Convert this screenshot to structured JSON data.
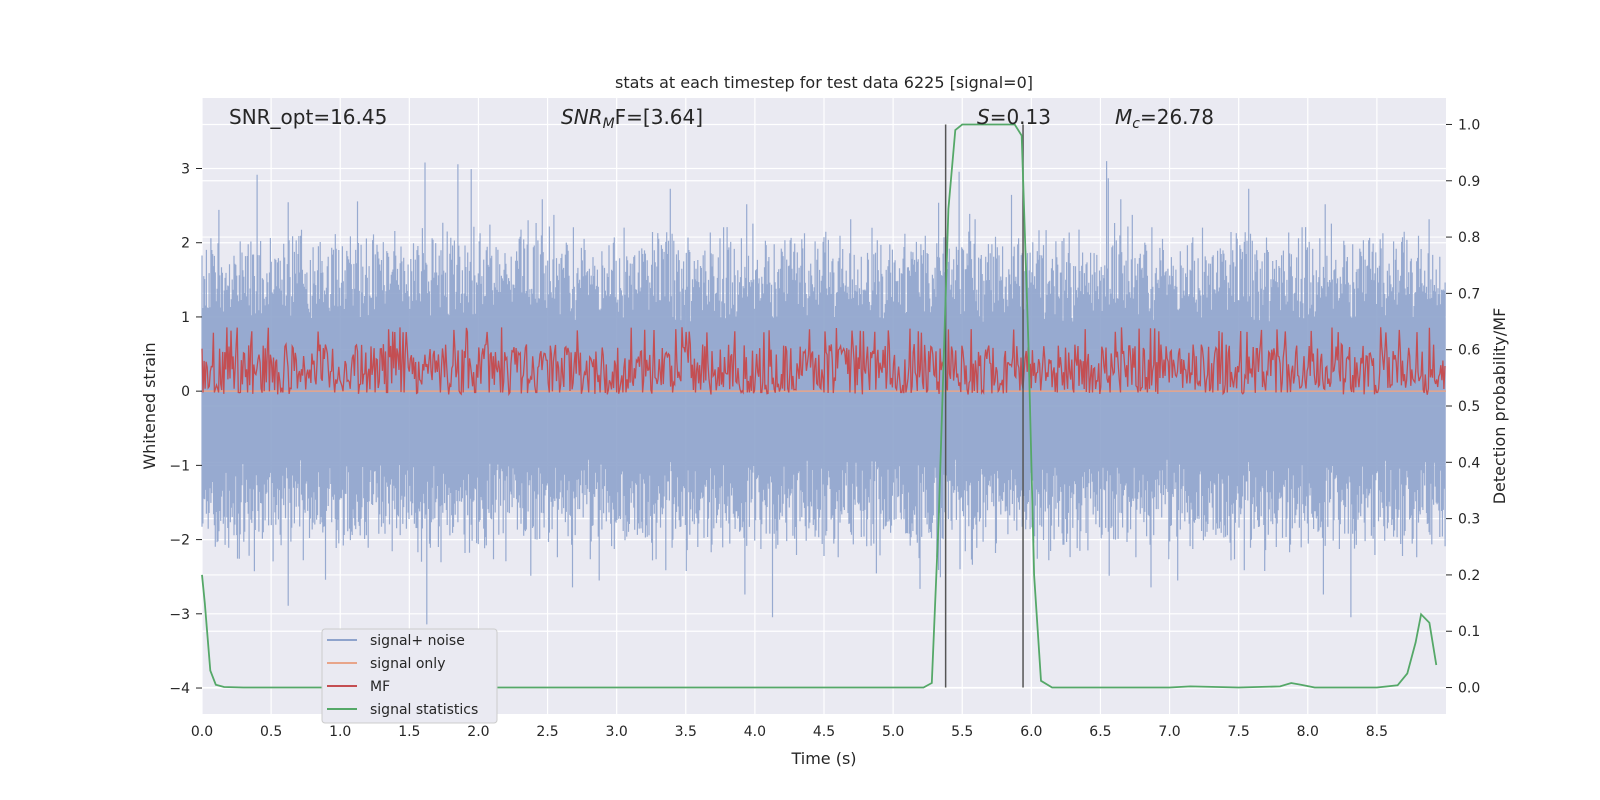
{
  "chart_data": {
    "type": "line",
    "title": "stats at each timestep for test data 6225 [signal=0]",
    "xlabel": "Time (s)",
    "ylabel_left": "Whitened strain",
    "ylabel_right": "Detection probability/MF",
    "xlim": [
      0.0,
      9.0
    ],
    "ylim_left": [
      -4.35,
      3.95
    ],
    "ylim_right": [
      -0.047,
      1.047
    ],
    "grid": true,
    "legend_position": "lower-left",
    "xticks": [
      "0.0",
      "0.5",
      "1.0",
      "1.5",
      "2.0",
      "2.5",
      "3.0",
      "3.5",
      "4.0",
      "4.5",
      "5.0",
      "5.5",
      "6.0",
      "6.5",
      "7.0",
      "7.5",
      "8.0",
      "8.5"
    ],
    "xtick_values": [
      0,
      0.5,
      1,
      1.5,
      2,
      2.5,
      3,
      3.5,
      4,
      4.5,
      5,
      5.5,
      6,
      6.5,
      7,
      7.5,
      8,
      8.5
    ],
    "yticks_left": [
      "−4",
      "−3",
      "−2",
      "−1",
      "0",
      "1",
      "2",
      "3"
    ],
    "ytick_values_left": [
      -4,
      -3,
      -2,
      -1,
      0,
      1,
      2,
      3
    ],
    "yticks_right": [
      "0.0",
      "0.1",
      "0.2",
      "0.3",
      "0.4",
      "0.5",
      "0.6",
      "0.7",
      "0.8",
      "0.9",
      "1.0"
    ],
    "ytick_values_right": [
      0,
      0.1,
      0.2,
      0.3,
      0.4,
      0.5,
      0.6,
      0.7,
      0.8,
      0.9,
      1.0
    ],
    "annotations": {
      "snr_opt": "SNR_opt=16.45",
      "snr_mf_sym": "SNR",
      "snr_mf_sub": "M",
      "snr_mf_rest": "F=[3.64]",
      "s_sym": "S",
      "s_rest": "=0.13",
      "mc_sym": "M",
      "mc_sub": "c",
      "mc_rest": "=26.78"
    },
    "vlines_x": [
      5.38,
      5.94
    ],
    "series": [
      {
        "name": "signal+ noise",
        "color": "#8ea3cc",
        "description_values": "noise envelope roughly between -2.5 and 2.5, peaks to about ±3.5"
      },
      {
        "name": "signal only",
        "color": "#e8a58a",
        "values_constant": 0.0
      },
      {
        "name": "MF",
        "color": "#c44e52",
        "range_right_axis": [
          0.52,
          0.64
        ]
      },
      {
        "name": "signal statistics",
        "color": "#55a868",
        "x": [
          0.0,
          0.02,
          0.06,
          0.1,
          0.16,
          0.3,
          1.0,
          2.0,
          3.0,
          4.0,
          5.0,
          5.22,
          5.28,
          5.33,
          5.4,
          5.45,
          5.5,
          5.6,
          5.8,
          5.88,
          5.93,
          5.98,
          6.02,
          6.07,
          6.15,
          6.5,
          7.0,
          7.15,
          7.5,
          7.8,
          7.88,
          7.95,
          8.05,
          8.15,
          8.5,
          8.65,
          8.72,
          8.78,
          8.82,
          8.88,
          8.93
        ],
        "y": [
          0.2,
          0.15,
          0.03,
          0.005,
          0.001,
          0.0,
          0.0,
          0.0,
          0.0,
          0.0,
          0.0,
          0.0,
          0.008,
          0.3,
          0.85,
          0.99,
          1.0,
          1.0,
          1.0,
          1.0,
          0.98,
          0.6,
          0.2,
          0.012,
          0.0,
          0.0,
          0.0,
          0.002,
          0.0,
          0.002,
          0.008,
          0.005,
          0.0,
          0.0,
          0.0,
          0.004,
          0.025,
          0.08,
          0.13,
          0.115,
          0.04
        ]
      }
    ],
    "legend": [
      "signal+ noise",
      "signal only",
      "MF",
      "signal statistics"
    ]
  }
}
